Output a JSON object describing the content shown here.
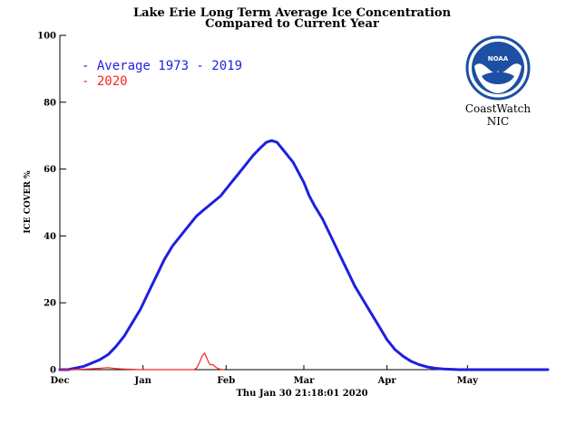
{
  "chart_data": {
    "type": "line",
    "title": "Lake Erie Long Term Average Ice Concentration",
    "subtitle": "Compared to Current Year",
    "xlabel": "",
    "ylabel": "ICE COVER %",
    "ylim": [
      0,
      100
    ],
    "yticks": [
      0,
      20,
      40,
      60,
      80,
      100
    ],
    "xlim": [
      "Dec 1",
      "Jun 1"
    ],
    "xticks": [
      {
        "label": "Dec",
        "day": 0
      },
      {
        "label": "Jan",
        "day": 31
      },
      {
        "label": "Feb",
        "day": 62
      },
      {
        "label": "Mar",
        "day": 91
      },
      {
        "label": "Apr",
        "day": 122
      },
      {
        "label": "May",
        "day": 152
      }
    ],
    "timestamp": "Thu Jan 30 21:18:01 2020",
    "legend_position": "top-left",
    "series": [
      {
        "name": "Average 1973 - 2019",
        "color": "#1f1fe0",
        "x": [
          0,
          3,
          6,
          9,
          12,
          15,
          18,
          21,
          24,
          27,
          30,
          33,
          36,
          39,
          42,
          45,
          48,
          51,
          54,
          57,
          60,
          63,
          66,
          69,
          72,
          75,
          77,
          79,
          81,
          83,
          85,
          87,
          89,
          91,
          93,
          95,
          98,
          101,
          104,
          107,
          110,
          113,
          116,
          119,
          122,
          125,
          128,
          131,
          134,
          137,
          140,
          143,
          146,
          149,
          152,
          158,
          164,
          170,
          176,
          182
        ],
        "y": [
          0,
          0,
          0.5,
          1,
          2,
          3,
          4.5,
          7,
          10,
          14,
          18,
          23,
          28,
          33,
          37,
          40,
          43,
          46,
          48,
          50,
          52,
          55,
          58,
          61,
          64,
          66.5,
          68,
          68.5,
          68,
          66,
          64,
          62,
          59,
          56,
          52,
          49,
          45,
          40,
          35,
          30,
          25,
          21,
          17,
          13,
          9,
          6,
          4,
          2.5,
          1.5,
          0.8,
          0.4,
          0.2,
          0.1,
          0,
          0,
          0,
          0,
          0,
          0,
          0
        ]
      },
      {
        "name": "2020",
        "color": "#ff2020",
        "x": [
          0,
          5,
          10,
          15,
          18,
          21,
          24,
          27,
          30,
          35,
          40,
          45,
          48,
          50,
          51,
          52,
          53,
          54,
          55,
          56,
          57,
          58,
          59,
          60,
          61
        ],
        "y": [
          0,
          0,
          0.2,
          0.4,
          0.6,
          0.3,
          0.2,
          0.1,
          0,
          0,
          0,
          0,
          0,
          0,
          0.5,
          2,
          4,
          5,
          3,
          1.5,
          1.5,
          0.8,
          0.3,
          0.1,
          0
        ]
      }
    ]
  },
  "logo": {
    "text": "NOAA",
    "org_line1": "CoastWatch",
    "org_line2": "NIC"
  },
  "colors": {
    "average": "#1f1fe0",
    "current": "#ff2020",
    "logo_blue": "#1d4fa3"
  }
}
